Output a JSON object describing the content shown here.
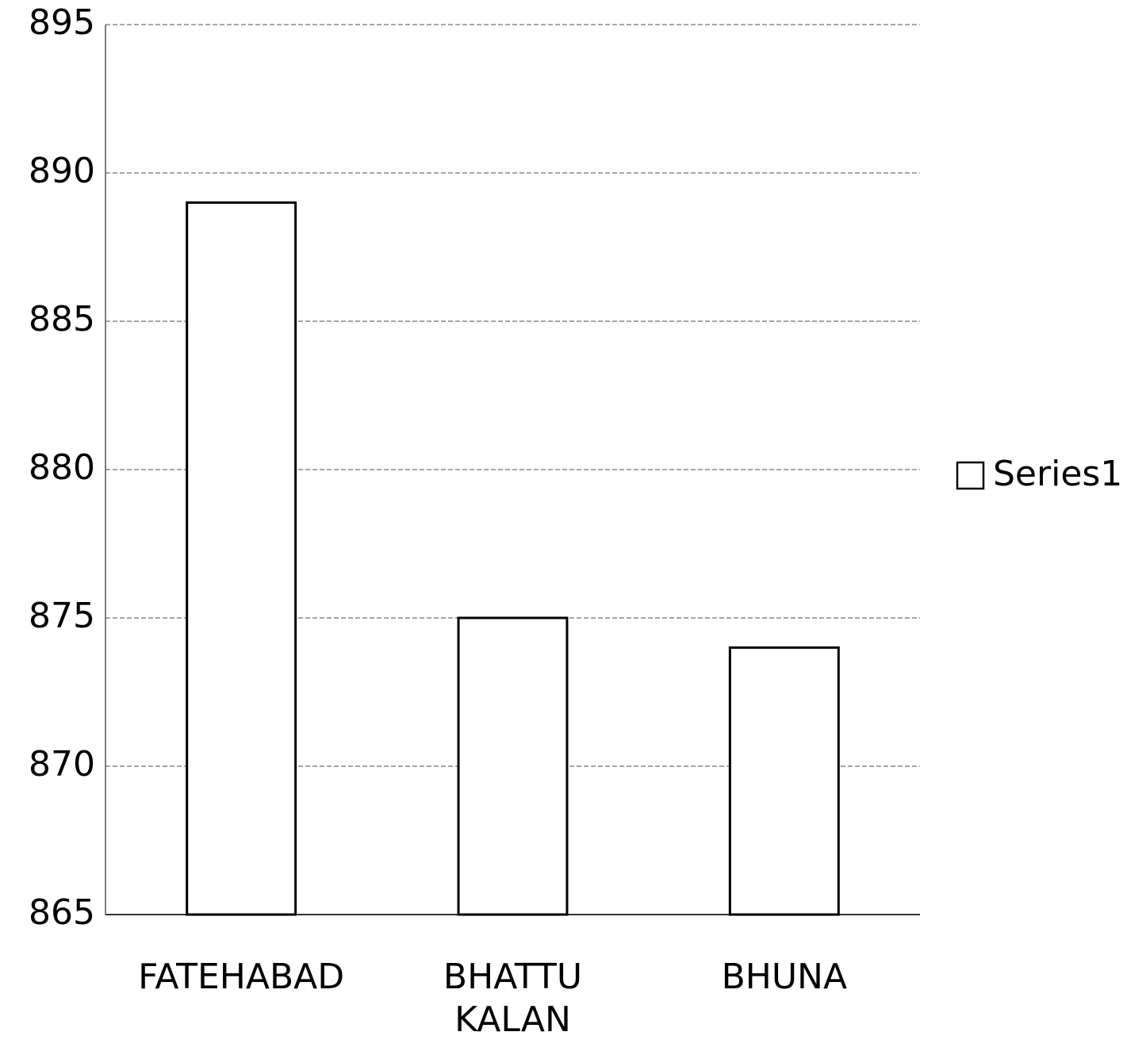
{
  "chart_data": {
    "type": "bar",
    "categories": [
      "FATEHABAD",
      "BHATTU KALAN",
      "BHUNA"
    ],
    "series": [
      {
        "name": "Series1",
        "color": "#ffffff",
        "values": [
          889,
          875,
          874
        ]
      }
    ],
    "ylim": [
      865,
      895
    ],
    "yticks": [
      865,
      870,
      875,
      880,
      885,
      890,
      895
    ],
    "grid": true,
    "legend": "right"
  }
}
